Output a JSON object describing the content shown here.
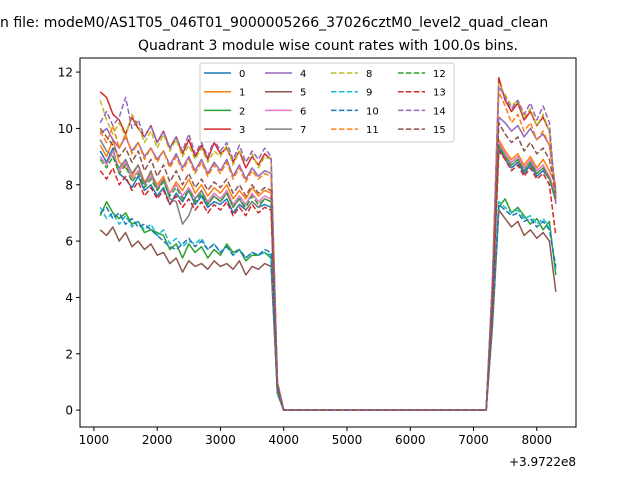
{
  "chart_data": {
    "type": "line",
    "suptitle": "n file: modeM0/AS1T05_046T01_9000005266_37026cztM0_level2_quad_clean",
    "title": "Quadrant 3 module wise count rates with 100.0s bins.",
    "xlabel": "",
    "ylabel": "",
    "x_offset_label": "+3.9722e8",
    "xlim": [
      780,
      8620
    ],
    "ylim": [
      -0.6,
      12.5
    ],
    "xticks": [
      1000,
      2000,
      3000,
      4000,
      5000,
      6000,
      7000,
      8000
    ],
    "yticks": [
      0,
      2,
      4,
      6,
      8,
      10,
      12
    ],
    "grid": false,
    "legend": {
      "placement": "top-center",
      "columns": 4
    },
    "x": [
      1100,
      1200,
      1300,
      1400,
      1500,
      1600,
      1700,
      1800,
      1900,
      2000,
      2100,
      2200,
      2300,
      2400,
      2500,
      2600,
      2700,
      2800,
      2900,
      3000,
      3100,
      3200,
      3300,
      3400,
      3500,
      3600,
      3700,
      3800,
      3900,
      4000,
      7200,
      7300,
      7400,
      7500,
      7600,
      7700,
      7800,
      7900,
      8000,
      8100,
      8200,
      8300
    ],
    "series": [
      {
        "name": "0",
        "color": "#1f77b4",
        "dashed": false,
        "values": [
          9.2,
          8.8,
          9.3,
          8.4,
          8.2,
          7.9,
          8.3,
          7.8,
          8.0,
          7.6,
          7.9,
          7.3,
          7.7,
          7.4,
          7.8,
          7.3,
          7.6,
          7.2,
          7.4,
          7.3,
          7.5,
          7.0,
          7.3,
          7.1,
          7.4,
          7.2,
          7.3,
          7.2,
          0.8,
          0.0,
          0.0,
          4.0,
          9.3,
          8.9,
          8.6,
          8.8,
          8.4,
          8.7,
          8.3,
          8.5,
          8.2,
          7.6
        ]
      },
      {
        "name": "1",
        "color": "#ff7f0e",
        "dashed": false,
        "values": [
          9.4,
          9.0,
          9.6,
          8.8,
          8.6,
          8.3,
          8.7,
          8.1,
          8.4,
          8.0,
          8.3,
          7.7,
          8.1,
          7.8,
          8.2,
          7.7,
          8.0,
          7.6,
          7.9,
          7.7,
          8.0,
          7.5,
          7.8,
          7.5,
          7.9,
          7.6,
          7.8,
          7.7,
          0.9,
          0.0,
          0.0,
          4.2,
          9.6,
          9.2,
          8.9,
          9.1,
          8.7,
          9.0,
          8.6,
          8.9,
          8.5,
          8.0
        ]
      },
      {
        "name": "2",
        "color": "#2ca02c",
        "dashed": false,
        "values": [
          6.9,
          7.4,
          7.0,
          6.8,
          7.0,
          6.6,
          6.7,
          6.3,
          6.4,
          6.3,
          6.2,
          5.7,
          5.9,
          5.4,
          5.9,
          5.6,
          5.8,
          5.4,
          5.7,
          5.5,
          5.9,
          5.6,
          5.7,
          5.3,
          5.5,
          5.5,
          5.6,
          5.4,
          0.6,
          0.0,
          0.0,
          3.2,
          7.2,
          7.5,
          7.0,
          7.2,
          6.9,
          6.6,
          6.8,
          6.4,
          6.7,
          4.8
        ]
      },
      {
        "name": "3",
        "color": "#d62728",
        "dashed": false,
        "values": [
          11.3,
          11.1,
          10.5,
          10.3,
          9.8,
          10.4,
          10.0,
          9.7,
          10.1,
          9.5,
          9.9,
          9.3,
          9.7,
          9.1,
          9.6,
          9.0,
          9.4,
          8.9,
          9.5,
          9.1,
          9.3,
          8.8,
          9.2,
          8.6,
          9.0,
          8.7,
          9.1,
          8.9,
          1.0,
          0.0,
          0.0,
          4.6,
          11.8,
          11.0,
          10.6,
          10.9,
          10.3,
          10.6,
          10.1,
          10.4,
          9.9,
          7.5
        ]
      },
      {
        "name": "4",
        "color": "#9467bd",
        "dashed": false,
        "values": [
          9.8,
          10.0,
          9.6,
          9.3,
          9.7,
          9.2,
          9.5,
          9.0,
          9.3,
          8.9,
          9.2,
          8.7,
          9.1,
          8.6,
          9.0,
          8.5,
          8.9,
          8.4,
          8.8,
          8.5,
          8.9,
          8.3,
          8.7,
          8.2,
          8.6,
          8.3,
          8.5,
          8.4,
          0.9,
          0.0,
          0.0,
          4.4,
          10.4,
          10.2,
          9.9,
          10.1,
          9.7,
          10.0,
          9.6,
          9.8,
          9.4,
          7.8
        ]
      },
      {
        "name": "5",
        "color": "#8c564b",
        "dashed": false,
        "values": [
          6.4,
          6.2,
          6.5,
          6.0,
          6.3,
          5.8,
          6.0,
          5.7,
          5.9,
          5.5,
          5.6,
          5.2,
          5.4,
          4.9,
          5.3,
          5.1,
          5.2,
          5.0,
          5.3,
          5.1,
          5.2,
          5.0,
          5.3,
          4.8,
          5.1,
          5.0,
          5.2,
          5.1,
          0.6,
          0.0,
          0.0,
          3.0,
          7.1,
          6.8,
          6.5,
          6.7,
          6.2,
          6.4,
          6.1,
          6.3,
          6.0,
          4.2
        ]
      },
      {
        "name": "6",
        "color": "#e377c2",
        "dashed": false,
        "values": [
          9.0,
          8.7,
          9.2,
          8.5,
          8.8,
          8.2,
          8.5,
          8.0,
          8.3,
          7.9,
          8.2,
          7.7,
          8.0,
          7.6,
          7.9,
          7.5,
          7.8,
          7.4,
          7.7,
          7.5,
          7.8,
          7.3,
          7.6,
          7.3,
          7.7,
          7.4,
          7.6,
          7.5,
          0.8,
          0.0,
          0.0,
          4.1,
          9.5,
          9.1,
          8.8,
          9.0,
          8.6,
          8.9,
          8.5,
          8.7,
          8.3,
          7.7
        ]
      },
      {
        "name": "7",
        "color": "#7f7f7f",
        "dashed": false,
        "values": [
          9.6,
          9.2,
          9.0,
          8.6,
          8.9,
          8.4,
          8.7,
          8.0,
          8.5,
          7.8,
          8.2,
          7.5,
          7.4,
          6.6,
          6.9,
          7.5,
          7.8,
          7.3,
          7.6,
          7.4,
          7.7,
          7.2,
          7.5,
          7.1,
          7.4,
          7.2,
          7.5,
          7.4,
          0.8,
          0.0,
          0.0,
          4.1,
          9.4,
          9.0,
          8.7,
          8.9,
          8.5,
          8.8,
          8.4,
          8.6,
          8.2,
          7.4
        ]
      },
      {
        "name": "8",
        "color": "#bcbd22",
        "dashed": true,
        "values": [
          11.0,
          10.3,
          9.8,
          10.2,
          9.7,
          10.5,
          10.1,
          9.5,
          9.9,
          9.3,
          9.8,
          9.2,
          9.6,
          9.0,
          9.4,
          8.9,
          9.3,
          8.8,
          9.2,
          9.0,
          9.4,
          8.7,
          9.2,
          8.8,
          9.1,
          8.6,
          9.0,
          8.9,
          1.0,
          0.0,
          0.0,
          4.6,
          11.6,
          11.2,
          10.8,
          11.0,
          10.4,
          10.7,
          10.1,
          10.5,
          9.9,
          7.6
        ]
      },
      {
        "name": "9",
        "color": "#17becf",
        "dashed": true,
        "values": [
          7.2,
          6.8,
          7.0,
          6.6,
          6.9,
          6.5,
          6.7,
          6.4,
          6.6,
          6.2,
          6.4,
          5.9,
          6.1,
          5.8,
          6.0,
          5.9,
          6.1,
          5.7,
          5.9,
          5.6,
          5.8,
          5.5,
          5.7,
          5.4,
          5.6,
          5.5,
          5.6,
          5.5,
          0.6,
          0.0,
          0.0,
          3.3,
          7.4,
          7.2,
          7.0,
          7.1,
          6.8,
          6.9,
          6.6,
          6.8,
          6.5,
          5.0
        ]
      },
      {
        "name": "10",
        "color": "#1f77b4",
        "dashed": true,
        "values": [
          7.0,
          7.2,
          6.8,
          7.0,
          6.6,
          6.8,
          6.5,
          6.6,
          6.4,
          6.2,
          6.0,
          5.8,
          5.7,
          5.9,
          6.1,
          5.8,
          6.0,
          5.7,
          5.9,
          5.6,
          5.8,
          5.5,
          5.7,
          5.4,
          5.6,
          5.5,
          5.7,
          5.6,
          0.6,
          0.0,
          0.0,
          3.3,
          7.3,
          7.1,
          6.9,
          7.0,
          6.7,
          6.8,
          6.5,
          6.7,
          6.4,
          5.1
        ]
      },
      {
        "name": "11",
        "color": "#ff7f0e",
        "dashed": true,
        "values": [
          9.9,
          9.5,
          10.1,
          9.3,
          9.8,
          9.1,
          9.5,
          8.9,
          9.3,
          8.8,
          9.2,
          8.6,
          9.0,
          8.5,
          8.9,
          8.4,
          8.8,
          8.3,
          8.7,
          8.4,
          8.8,
          8.2,
          8.6,
          8.1,
          8.5,
          8.2,
          8.4,
          8.3,
          0.9,
          0.0,
          0.0,
          4.4,
          11.3,
          10.8,
          10.2,
          10.5,
          9.9,
          10.2,
          9.6,
          9.9,
          9.4,
          7.9
        ]
      },
      {
        "name": "12",
        "color": "#2ca02c",
        "dashed": true,
        "values": [
          8.9,
          8.6,
          9.0,
          8.4,
          8.7,
          8.1,
          8.4,
          7.9,
          8.2,
          7.8,
          8.1,
          7.6,
          7.9,
          7.5,
          7.8,
          7.4,
          7.7,
          7.3,
          7.6,
          7.4,
          7.7,
          7.2,
          7.5,
          7.2,
          7.6,
          7.3,
          7.5,
          7.4,
          0.8,
          0.0,
          0.0,
          4.0,
          9.4,
          9.0,
          8.7,
          8.9,
          8.5,
          8.8,
          8.4,
          8.6,
          8.2,
          7.5
        ]
      },
      {
        "name": "13",
        "color": "#d62728",
        "dashed": true,
        "values": [
          8.5,
          8.2,
          8.6,
          8.0,
          8.3,
          7.8,
          8.1,
          7.6,
          7.9,
          7.5,
          7.8,
          7.3,
          7.6,
          7.2,
          7.5,
          7.1,
          7.4,
          7.0,
          7.3,
          7.1,
          7.4,
          6.9,
          7.2,
          6.9,
          7.3,
          7.0,
          7.2,
          7.1,
          0.8,
          0.0,
          0.0,
          3.8,
          9.2,
          8.9,
          8.5,
          8.7,
          8.3,
          8.6,
          8.2,
          8.4,
          8.0,
          6.2
        ]
      },
      {
        "name": "14",
        "color": "#9467bd",
        "dashed": true,
        "values": [
          10.2,
          10.6,
          10.1,
          10.4,
          11.1,
          10.0,
          10.3,
          9.7,
          10.1,
          9.5,
          9.9,
          9.3,
          9.7,
          9.2,
          9.8,
          9.1,
          9.5,
          9.0,
          9.6,
          9.2,
          9.5,
          8.9,
          9.4,
          8.8,
          9.2,
          8.9,
          9.3,
          9.0,
          1.0,
          0.0,
          0.0,
          4.7,
          11.5,
          11.1,
          10.7,
          11.0,
          10.5,
          10.9,
          10.3,
          10.8,
          10.2,
          7.3
        ]
      },
      {
        "name": "15",
        "color": "#8c564b",
        "dashed": true,
        "values": [
          10.0,
          9.7,
          9.4,
          9.0,
          9.3,
          8.8,
          9.2,
          8.5,
          8.9,
          8.3,
          8.7,
          8.1,
          8.5,
          8.0,
          8.4,
          7.9,
          8.2,
          7.8,
          8.1,
          7.9,
          8.2,
          7.7,
          8.0,
          7.6,
          8.0,
          7.7,
          7.9,
          7.8,
          0.9,
          0.0,
          0.0,
          4.2,
          10.2,
          9.8,
          9.5,
          9.7,
          9.2,
          9.5,
          9.1,
          9.3,
          8.9,
          7.7
        ]
      }
    ]
  }
}
